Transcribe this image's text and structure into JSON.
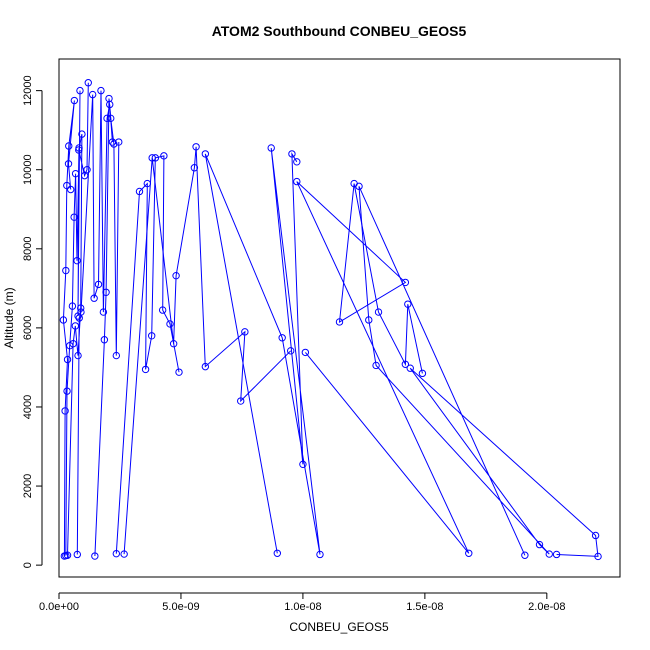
{
  "chart_data": {
    "type": "scatter",
    "title": "ATOM2 Southbound CONBEU_GEOS5",
    "xlabel": "CONBEU_GEOS5",
    "ylabel": "Altitude (m)",
    "xlim": [
      0,
      2.3e-08
    ],
    "ylim": [
      -300,
      12800
    ],
    "x_ticks": [
      0,
      5e-09,
      1e-08,
      1.5e-08,
      2e-08
    ],
    "x_tick_labels": [
      "0.0e+00",
      "5.0e-09",
      "1.0e-08",
      "1.5e-08",
      "2.0e-08"
    ],
    "y_ticks": [
      0,
      2000,
      4000,
      6000,
      8000,
      10000,
      12000
    ],
    "y_tick_labels": [
      "0",
      "2000",
      "4000",
      "6000",
      "8000",
      "10000",
      "12000"
    ],
    "grid": false,
    "legend": "none",
    "marker": "open-circle",
    "lines": true,
    "color": "#0000ff",
    "series": [
      {
        "x": [
          2.2e-10,
          2.5e-10,
          3.5e-10,
          1.8e-10,
          2.8e-10,
          3.2e-10,
          4e-10,
          6.3e-10,
          3.9e-10,
          4.8e-10
        ],
        "y": [
          230,
          3900,
          5200,
          6200,
          7450,
          9600,
          10600,
          11750,
          10150,
          9500
        ]
      },
      {
        "x": [
          2.8e-10,
          3.3e-10,
          4.4e-10,
          5.5e-10,
          6.2e-10,
          6.8e-10,
          7.4e-10,
          8.2e-10,
          7.8e-10,
          8.6e-10
        ],
        "y": [
          240,
          4400,
          5550,
          6550,
          8800,
          9900,
          7700,
          10550,
          6300,
          12000
        ]
      },
      {
        "x": [
          3.5e-10,
          5.8e-10,
          6.7e-10,
          7.8e-10,
          8.9e-10,
          9.4e-10,
          8.1e-10,
          1.05e-09,
          1.15e-09,
          1.2e-09
        ],
        "y": [
          250,
          5600,
          6050,
          5300,
          6500,
          10900,
          10500,
          9850,
          10000,
          12200
        ]
      },
      {
        "x": [
          7.5e-10,
          8.3e-10,
          9e-10,
          1.38e-09,
          1.44e-09,
          1.62e-09,
          1.72e-09,
          1.82e-09,
          1.97e-09,
          2.08e-09,
          2.19e-09
        ],
        "y": [
          270,
          6250,
          6400,
          11900,
          6750,
          7100,
          12000,
          6400,
          11300,
          11650,
          10700
        ]
      },
      {
        "x": [
          1.47e-09,
          1.86e-09,
          1.93e-09,
          2.05e-09,
          2.12e-09,
          2.25e-09,
          2.35e-09,
          2.45e-09
        ],
        "y": [
          230,
          5700,
          6900,
          11800,
          11300,
          10650,
          5300,
          10700
        ]
      },
      {
        "x": [
          2.35e-09,
          3.3e-09,
          3.62e-09,
          3.55e-09,
          3.8e-09,
          3.95e-09,
          4.3e-09,
          4.25e-09,
          4.55e-09,
          4.92e-09
        ],
        "y": [
          290,
          9450,
          9650,
          4950,
          5800,
          10300,
          10350,
          6450,
          6100,
          4880
        ]
      },
      {
        "x": [
          2.67e-09,
          3.82e-09,
          4.7e-09,
          4.8e-09,
          5.55e-09,
          5.62e-09,
          6e-09,
          7.62e-09,
          7.45e-09,
          9.5e-09
        ],
        "y": [
          280,
          10300,
          5600,
          7320,
          10050,
          10580,
          5020,
          5900,
          4150,
          5420
        ]
      },
      {
        "x": [
          8.95e-09,
          6e-09,
          9.15e-09,
          1.07e-08,
          8.7e-09,
          1e-08,
          9.55e-09,
          9.75e-09
        ],
        "y": [
          300,
          10400,
          5750,
          270,
          10550,
          2550,
          10400,
          10200
        ]
      },
      {
        "x": [
          1.01e-08,
          1.68e-08,
          9.75e-09,
          1.42e-08,
          1.15e-08,
          1.21e-08,
          1.31e-08,
          1.42e-08,
          1.43e-08,
          1.49e-08
        ],
        "y": [
          5380,
          300,
          9700,
          7150,
          6150,
          9650,
          6400,
          5080,
          6600,
          4850
        ]
      },
      {
        "x": [
          1.91e-08,
          1.23e-08,
          1.27e-08,
          1.3e-08,
          2.01e-08,
          1.97e-08,
          1.44e-08,
          2.2e-08,
          2.21e-08,
          2.04e-08
        ],
        "y": [
          250,
          9580,
          6200,
          5050,
          280,
          520,
          4980,
          750,
          220,
          270
        ]
      }
    ]
  }
}
